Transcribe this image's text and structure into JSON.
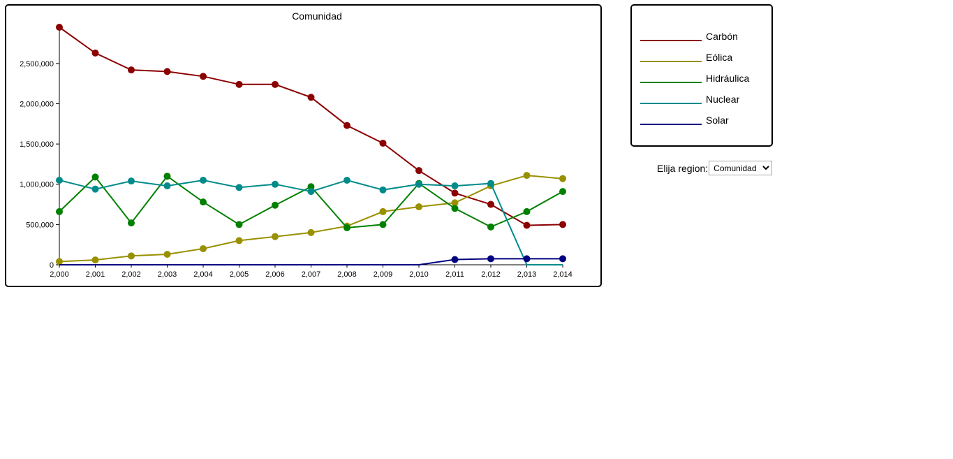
{
  "chart_data": {
    "type": "line",
    "title": "Comunidad",
    "xlabel": "",
    "ylabel": "",
    "x": [
      2000,
      2001,
      2002,
      2003,
      2004,
      2005,
      2006,
      2007,
      2008,
      2009,
      2010,
      2011,
      2012,
      2013,
      2014
    ],
    "x_tick_labels": [
      "2,000",
      "2,001",
      "2,002",
      "2,003",
      "2,004",
      "2,005",
      "2,006",
      "2,007",
      "2,008",
      "2,009",
      "2,010",
      "2,011",
      "2,012",
      "2,013",
      "2,014"
    ],
    "y_ticks": [
      0,
      500000,
      1000000,
      1500000,
      2000000,
      2500000
    ],
    "y_tick_labels": [
      "0",
      "500,000",
      "1,000,000",
      "1,500,000",
      "2,000,000",
      "2,500,000"
    ],
    "ylim": [
      0,
      2950000
    ],
    "grid": false,
    "legend": "separate-panel-right",
    "series": [
      {
        "name": "Carbón",
        "color": "#8b0000",
        "values": [
          2950000,
          2630000,
          2420000,
          2400000,
          2340000,
          2240000,
          2240000,
          2080000,
          1730000,
          1510000,
          1170000,
          890000,
          750000,
          490000,
          500000
        ],
        "markers": [
          true,
          true,
          true,
          true,
          true,
          true,
          true,
          true,
          true,
          true,
          true,
          true,
          true,
          true,
          true
        ]
      },
      {
        "name": "Eólica",
        "color": "#999000",
        "values": [
          40000,
          60000,
          110000,
          130000,
          200000,
          300000,
          350000,
          400000,
          480000,
          660000,
          720000,
          770000,
          980000,
          1110000,
          1070000
        ],
        "markers": [
          true,
          true,
          true,
          true,
          true,
          true,
          true,
          true,
          true,
          true,
          true,
          true,
          true,
          true,
          true
        ]
      },
      {
        "name": "Hidráulica",
        "color": "#008000",
        "values": [
          660000,
          1090000,
          520000,
          1100000,
          780000,
          500000,
          740000,
          970000,
          460000,
          500000,
          1010000,
          700000,
          470000,
          660000,
          910000
        ],
        "markers": [
          true,
          true,
          true,
          true,
          true,
          true,
          true,
          true,
          true,
          true,
          true,
          true,
          true,
          true,
          true
        ]
      },
      {
        "name": "Nuclear",
        "color": "#008b8b",
        "values": [
          1050000,
          940000,
          1040000,
          980000,
          1050000,
          960000,
          1000000,
          910000,
          1050000,
          930000,
          1000000,
          980000,
          1010000,
          0,
          0
        ],
        "markers": [
          true,
          true,
          true,
          true,
          true,
          true,
          true,
          true,
          true,
          true,
          true,
          true,
          true,
          false,
          false
        ]
      },
      {
        "name": "Solar",
        "color": "#000080",
        "values": [
          0,
          0,
          0,
          0,
          0,
          0,
          0,
          0,
          0,
          0,
          0,
          65000,
          75000,
          75000,
          75000
        ],
        "markers": [
          false,
          false,
          false,
          false,
          false,
          false,
          false,
          false,
          false,
          false,
          false,
          true,
          true,
          true,
          true
        ]
      }
    ]
  },
  "controls": {
    "region_label": "Elija region:",
    "region_selected": "Comunidad"
  }
}
